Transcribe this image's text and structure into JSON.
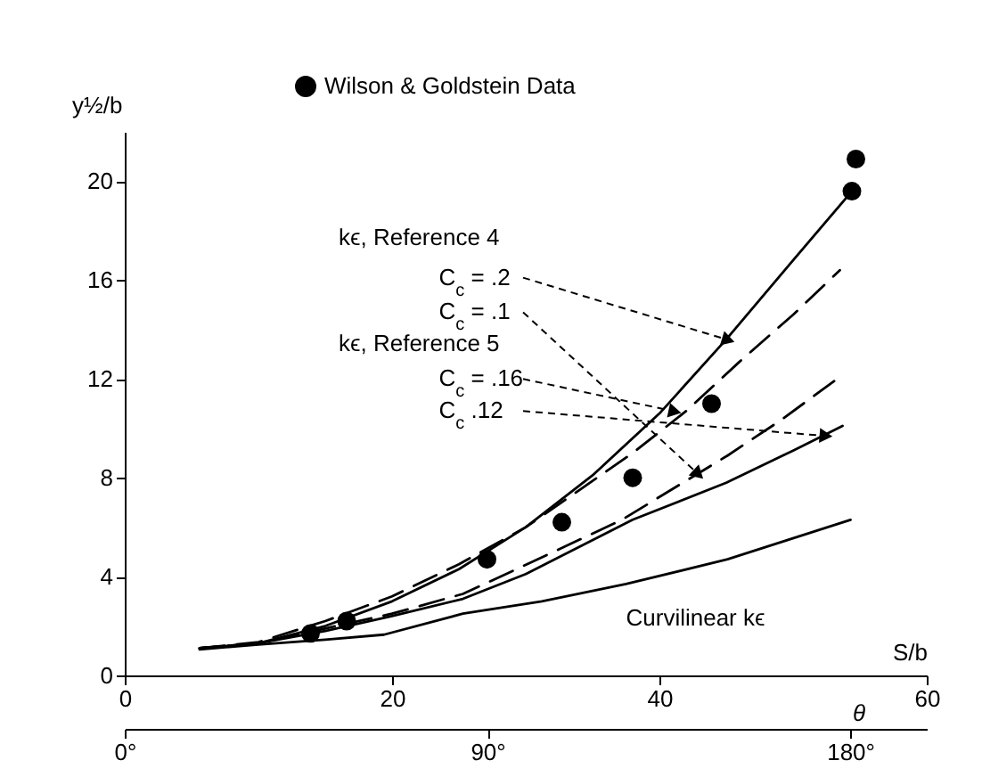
{
  "chart_data": {
    "type": "line",
    "xlabel": "S/b",
    "ylabel": "y½/b",
    "x2label": "θ",
    "xlim": [
      0,
      60
    ],
    "xticks": [
      0,
      20,
      40,
      60
    ],
    "ylim": [
      0,
      22
    ],
    "yticks": [
      0,
      4,
      8,
      12,
      16,
      20
    ],
    "x2lim": [
      0,
      199
    ],
    "x2ticks": [
      {
        "value": 0,
        "label": "0°"
      },
      {
        "value": 90,
        "label": "90°"
      },
      {
        "value": 180,
        "label": "180°"
      }
    ],
    "legend": "top",
    "grid": false,
    "annotations": [
      "kϵ, Reference 4",
      {
        "text": "C$_{c}$ = .2",
        "x": 45,
        "y": 13.6
      },
      {
        "text": "C$_{c}$ = .1",
        "x": 42.8,
        "y": 8.2
      },
      "kϵ, Reference 5",
      {
        "text": "C$_{c}$ = .16",
        "x": 41,
        "y": 10.7
      },
      {
        "text": "C$_{c}$ .12",
        "x": 52.3,
        "y": 9.7
      },
      "Curvilinear kϵ"
    ],
    "series": [
      {
        "color": "#000000",
        "line_style": "solid",
        "x": [
          5.6,
          10,
          15,
          20,
          25,
          30,
          35,
          40,
          45,
          50,
          54.4
        ],
        "values": [
          1.1,
          1.3,
          2.0,
          3.0,
          4.3,
          6.0,
          8.1,
          10.6,
          13.6,
          16.8,
          19.6
        ]
      },
      {
        "color": "#000000",
        "line_style": "dashed",
        "x": [
          5.6,
          10,
          15,
          20,
          25.3,
          29.7,
          37.2,
          45.1,
          49,
          53.3
        ],
        "values": [
          1.1,
          1.3,
          1.9,
          2.5,
          3.3,
          4.4,
          6.3,
          8.9,
          10.3,
          12.0
        ]
      },
      {
        "color": "#000000",
        "line_style": "dashed",
        "x": [
          5.6,
          10,
          15,
          20,
          25,
          30,
          34,
          38,
          42,
          46,
          50,
          53.5
        ],
        "values": [
          1.1,
          1.35,
          2.2,
          3.2,
          4.5,
          6.0,
          7.5,
          9.0,
          10.7,
          12.7,
          14.6,
          16.4
        ]
      },
      {
        "color": "#000000",
        "line_style": "solid",
        "x": [
          5.6,
          10,
          15,
          20,
          25.3,
          30,
          38,
          45,
          50,
          53.7
        ],
        "values": [
          1.1,
          1.3,
          1.8,
          2.4,
          3.1,
          4.1,
          6.3,
          7.8,
          9.1,
          10.1
        ]
      },
      {
        "color": "#000000",
        "line_style": "solid",
        "x": [
          5.6,
          10,
          15,
          19.4,
          25.3,
          31.2,
          37.5,
          45.1,
          54.3
        ],
        "values": [
          1.05,
          1.25,
          1.45,
          1.65,
          2.5,
          3.0,
          3.7,
          4.7,
          6.3
        ]
      },
      {
        "type": "scatter",
        "name": "Wilson & Goldstein Data",
        "color": "#000000",
        "marker": "circle",
        "x": [
          13.9,
          16.6,
          27.1,
          32.7,
          38,
          43.9,
          54.4,
          54.7
        ],
        "values": [
          1.7,
          2.2,
          4.7,
          6.2,
          8.0,
          11.0,
          19.6,
          20.9
        ]
      }
    ]
  }
}
